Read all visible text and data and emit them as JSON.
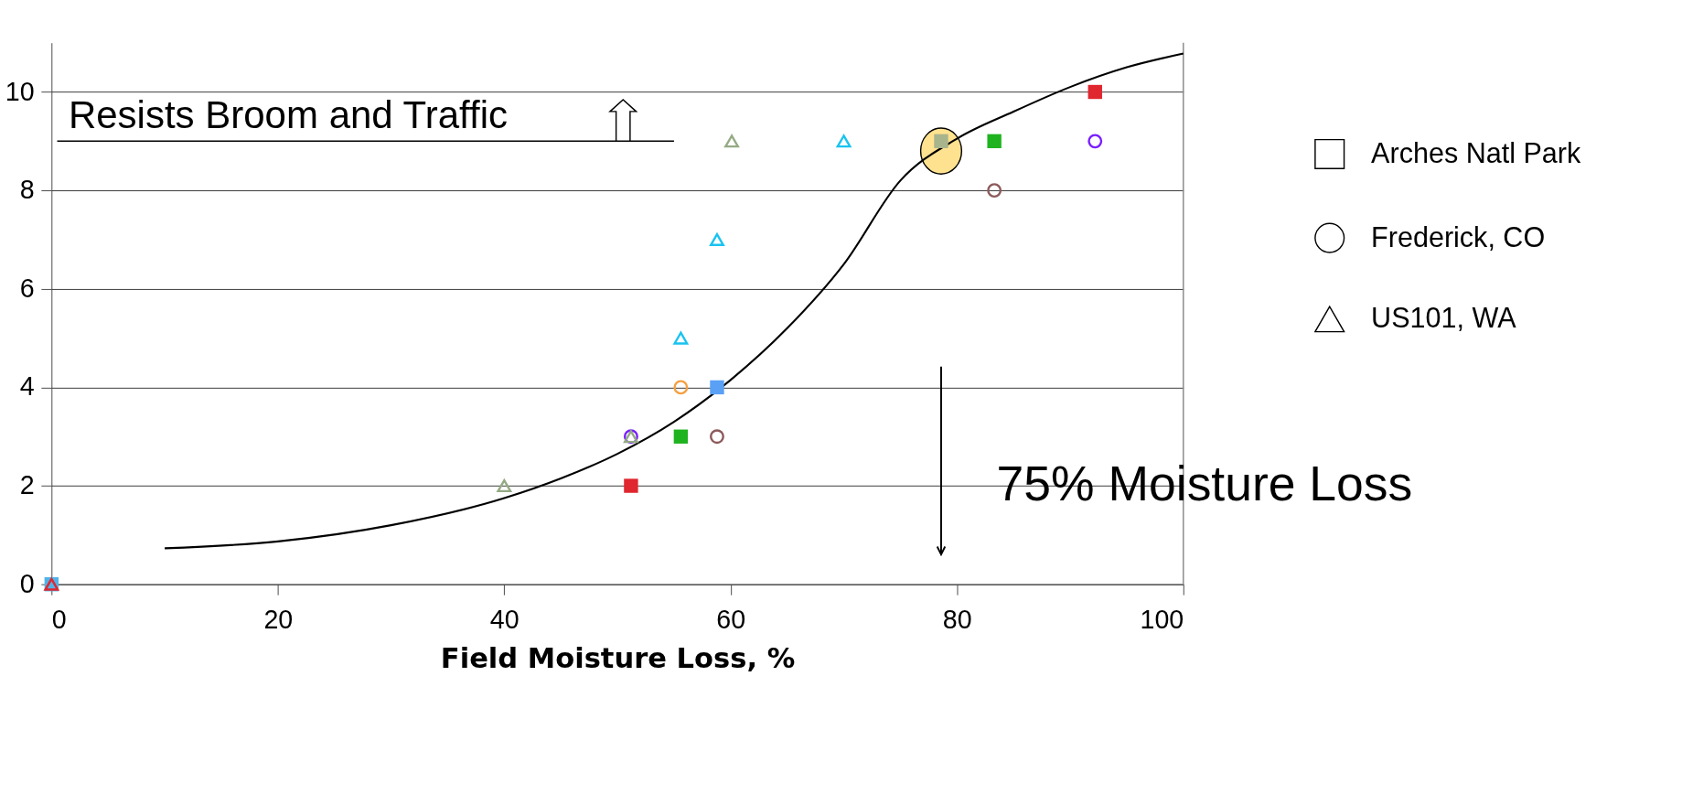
{
  "chart_data": {
    "type": "scatter",
    "xlabel": "Field Moisture Loss, %",
    "xlim": [
      0,
      100
    ],
    "xticks": [
      0,
      20,
      40,
      60,
      80,
      100
    ],
    "ylim": [
      0,
      11
    ],
    "yticks": [
      0,
      2,
      4,
      6,
      8,
      10
    ],
    "grid": "y",
    "legend": "right",
    "series": [
      {
        "name": "Arches Natl Park",
        "marker": "square",
        "x": [
          0,
          51.2,
          55.6,
          58.8,
          78.6,
          83.3,
          92.2
        ],
        "values": [
          0,
          2,
          3,
          4,
          9,
          9,
          10
        ],
        "colors": [
          "#4fb3e8",
          "#e0262e",
          "#1fb31f",
          "#5aa0f5",
          "#a8b48c",
          "#1fb31f",
          "#e0262e"
        ]
      },
      {
        "name": "Frederick, CO",
        "marker": "circle",
        "x": [
          51.2,
          55.6,
          58.8,
          83.3,
          92.2
        ],
        "values": [
          3,
          4,
          3,
          8,
          9
        ],
        "colors": [
          "#7a1fff",
          "#f5a043",
          "#8c5a5a",
          "#8c5a5a",
          "#7a1fff"
        ]
      },
      {
        "name": "US101, WA",
        "marker": "triangle",
        "x": [
          0,
          40.0,
          51.2,
          55.6,
          58.8,
          60.1,
          70.0
        ],
        "values": [
          0,
          2,
          3,
          5,
          7,
          9,
          9
        ],
        "colors": [
          "#e0262e",
          "#95aa85",
          "#95aa85",
          "#19c3f0",
          "#19c3f0",
          "#95aa85",
          "#19c3f0"
        ]
      },
      {
        "type": "line",
        "marker": "none",
        "line_style": "solid",
        "color": "#000000",
        "x": [
          10,
          20,
          30,
          40,
          45,
          50,
          55,
          60,
          65,
          70,
          75,
          80,
          85,
          90,
          95,
          100
        ],
        "values": [
          0.73,
          0.87,
          1.2,
          1.75,
          2.15,
          2.65,
          3.3,
          4.15,
          5.2,
          6.5,
          8.2,
          9.05,
          9.6,
          10.1,
          10.5,
          10.78
        ]
      }
    ],
    "annotations": [
      "Resists Broom and Traffic",
      "75% Moisture Loss"
    ]
  }
}
